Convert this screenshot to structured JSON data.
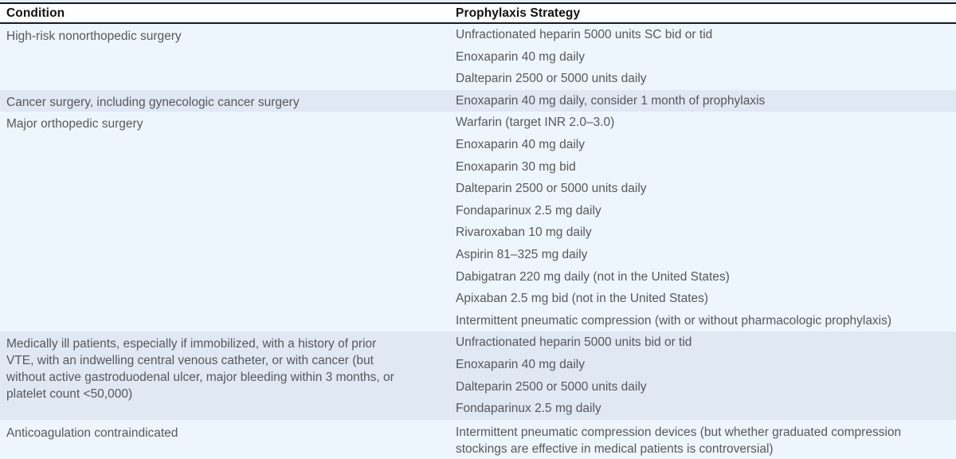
{
  "table": {
    "columns": [
      "Condition",
      "Prophylaxis Strategy"
    ],
    "colors": {
      "row_light": "#edf6fc",
      "row_dark": "#dfe8f3",
      "header_bg": "#fdfeff",
      "rule": "#1a1a1a",
      "header_text": "#111111",
      "body_text": "#57585c",
      "top_strip": "#e4eef7"
    },
    "rows": [
      {
        "shade": "light",
        "condition": "High-risk nonorthopedic surgery",
        "strategies": [
          "Unfractionated heparin 5000 units SC bid or tid",
          "Enoxaparin 40 mg daily",
          "Dalteparin 2500 or 5000 units daily"
        ]
      },
      {
        "shade": "dark",
        "condition": "Cancer surgery, including gynecologic cancer surgery",
        "strategies": [
          "Enoxaparin 40 mg daily, consider 1 month of prophylaxis"
        ]
      },
      {
        "shade": "light",
        "condition": "Major orthopedic surgery",
        "strategies": [
          "Warfarin (target INR 2.0–3.0)",
          "Enoxaparin 40 mg daily",
          "Enoxaparin 30 mg bid",
          "Dalteparin 2500 or 5000 units daily",
          "Fondaparinux 2.5 mg daily",
          "Rivaroxaban 10 mg daily",
          "Aspirin 81–325 mg daily",
          "Dabigatran 220 mg daily (not in the United States)",
          "Apixaban 2.5 mg bid (not in the United States)",
          "Intermittent pneumatic compression (with or without pharmacologic prophylaxis)"
        ]
      },
      {
        "shade": "dark",
        "condition": "Medically ill patients, especially if immobilized, with a history of prior VTE, with an indwelling central venous catheter, or with cancer (but without active gastroduodenal ulcer, major bleeding within 3 months, or platelet count <50,000)",
        "strategies": [
          "Unfractionated heparin 5000 units bid or tid",
          "Enoxaparin 40 mg daily",
          "Dalteparin 2500 or 5000 units daily",
          "Fondaparinux 2.5 mg daily"
        ]
      },
      {
        "shade": "light",
        "strategies_wrap": true,
        "condition": "Anticoagulation contraindicated",
        "strategies": [
          "Intermittent pneumatic compression devices (but whether graduated compression stockings are effective in medical patients is controversial)"
        ]
      }
    ]
  }
}
